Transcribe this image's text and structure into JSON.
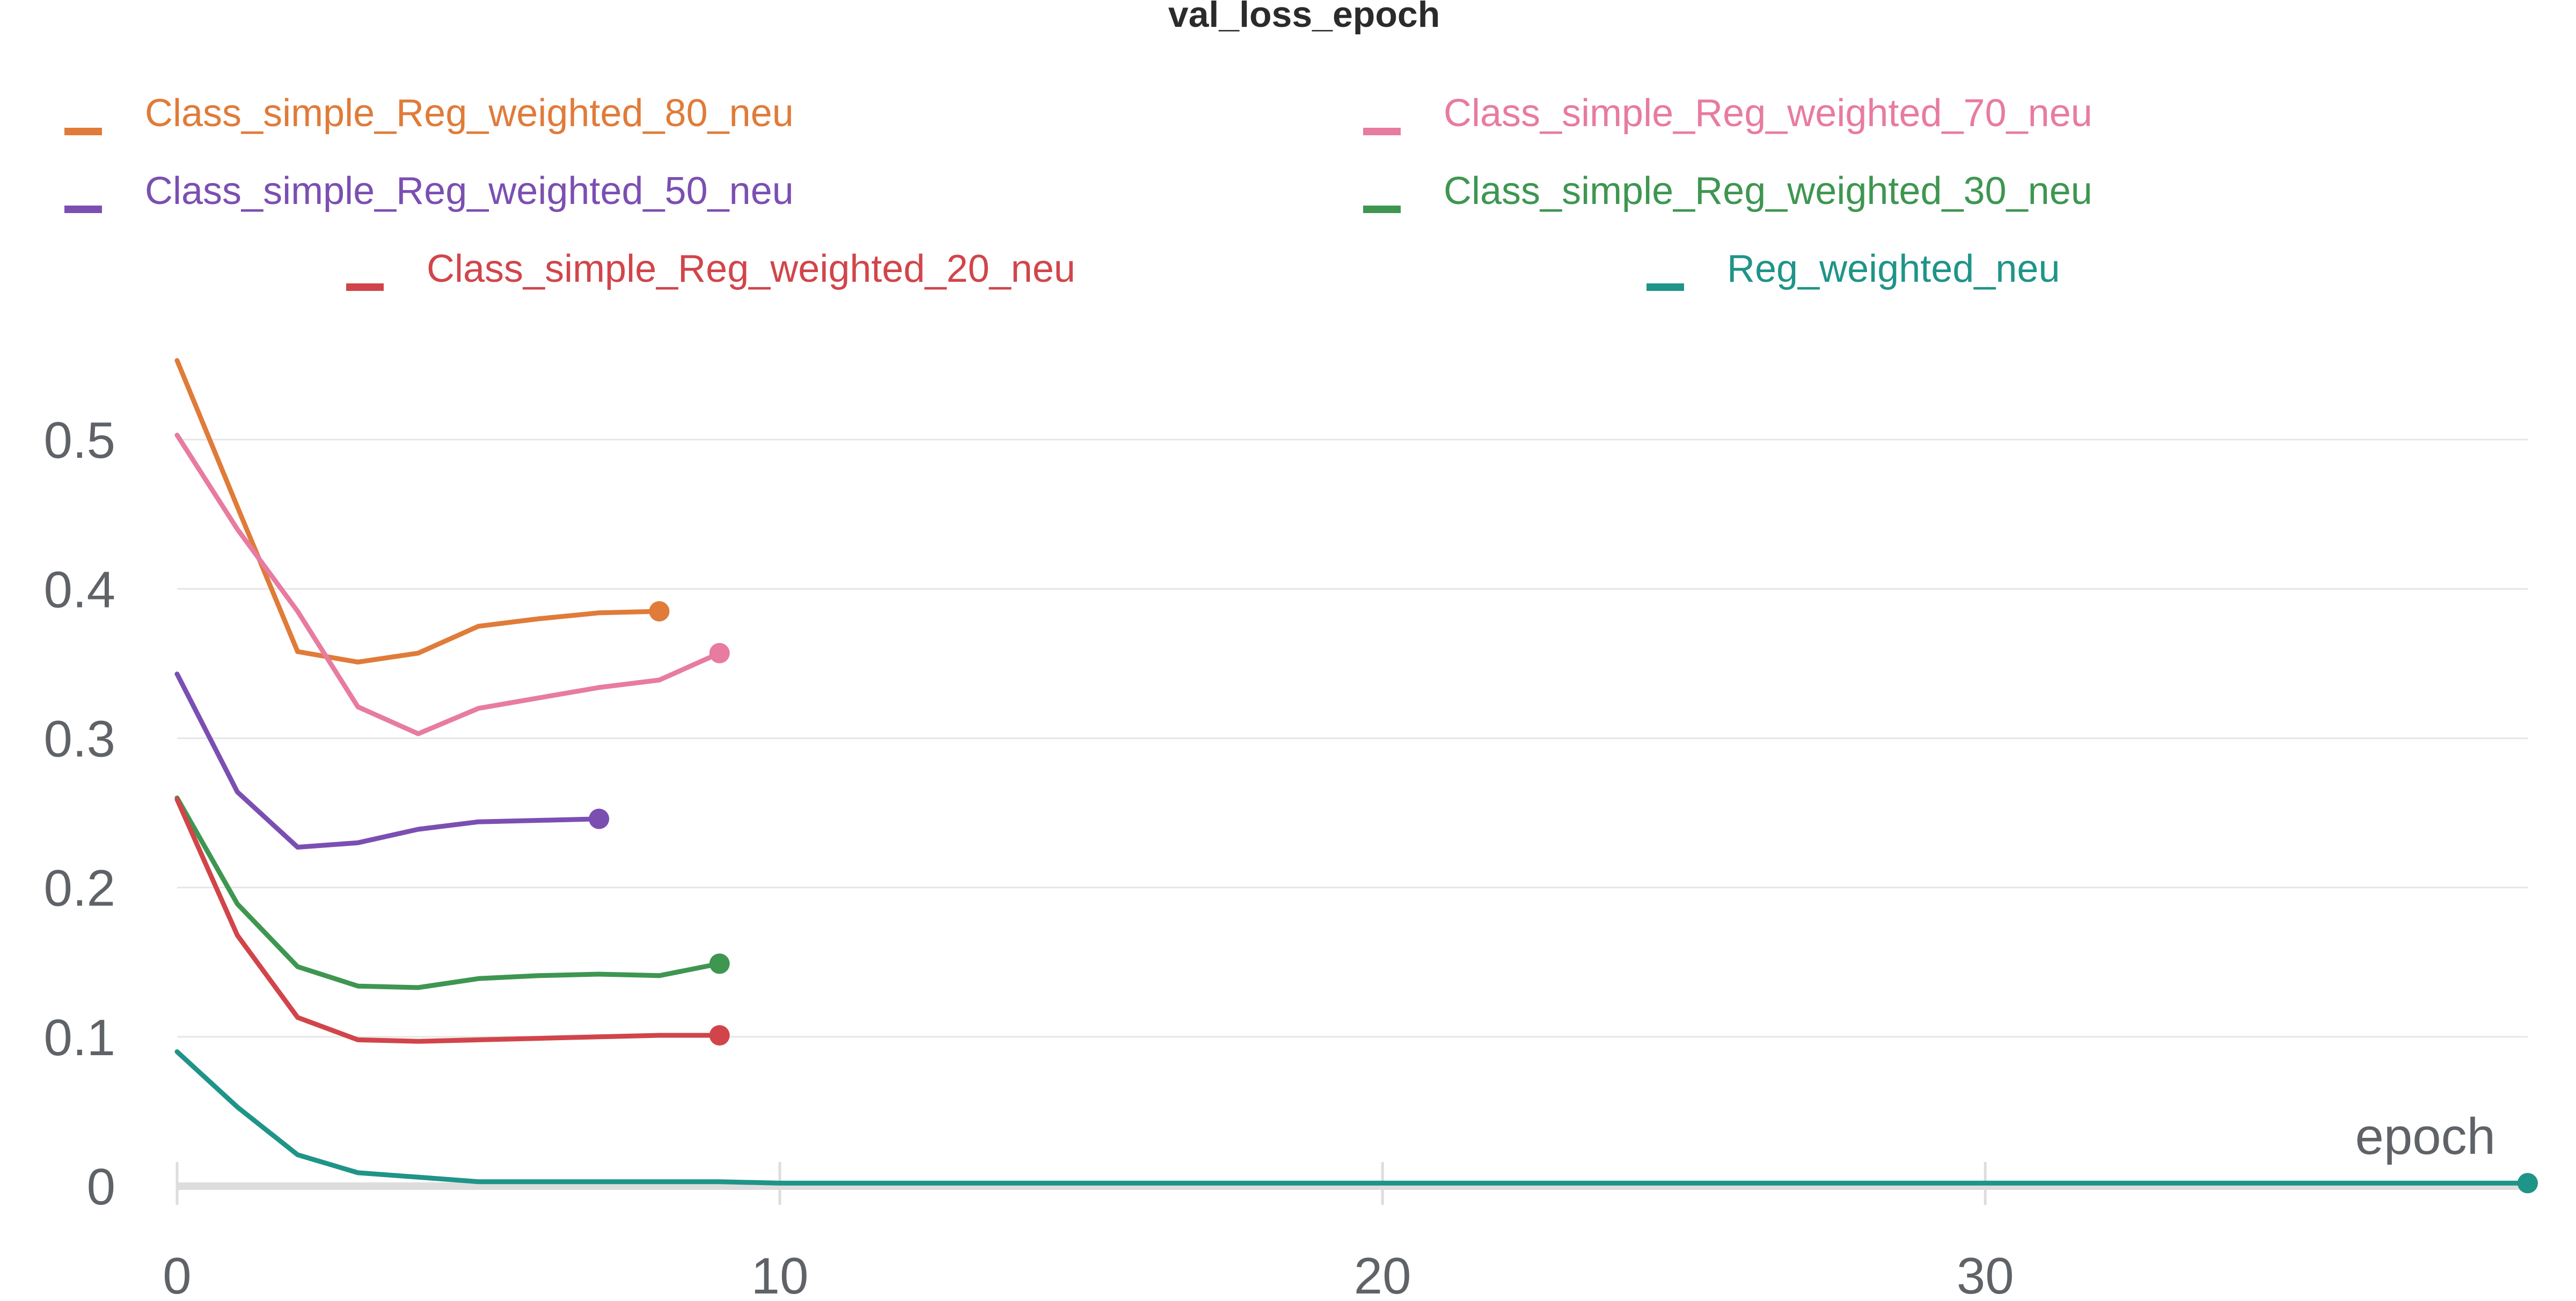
{
  "chart_data": {
    "type": "line",
    "title": "val_loss_epoch",
    "xlabel": "epoch",
    "ylabel": "",
    "xlim": [
      0,
      39
    ],
    "ylim": [
      0,
      0.55
    ],
    "x_ticks": [
      0,
      10,
      20,
      30
    ],
    "y_ticks": [
      0,
      0.1,
      0.2,
      0.3,
      0.4,
      0.5
    ],
    "x_tick_labels": [
      "0",
      "10",
      "20",
      "30"
    ],
    "y_tick_labels": [
      "0",
      "0.1",
      "0.2",
      "0.3",
      "0.4",
      "0.5"
    ],
    "grid": true,
    "legend_position": "top",
    "series": [
      {
        "name": "Class_simple_Reg_weighted_80_neu",
        "color": "#e07b39",
        "x": [
          0,
          1,
          2,
          3,
          4,
          5,
          6,
          7,
          8
        ],
        "y": [
          0.553,
          0.455,
          0.358,
          0.351,
          0.357,
          0.375,
          0.38,
          0.384,
          0.385
        ]
      },
      {
        "name": "Class_simple_Reg_weighted_70_neu",
        "color": "#e87ba0",
        "x": [
          0,
          1,
          2,
          3,
          4,
          5,
          6,
          7,
          8,
          9
        ],
        "y": [
          0.503,
          0.44,
          0.385,
          0.321,
          0.303,
          0.32,
          0.327,
          0.334,
          0.339,
          0.357
        ]
      },
      {
        "name": "Class_simple_Reg_weighted_50_neu",
        "color": "#7b4fb2",
        "x": [
          0,
          1,
          2,
          3,
          4,
          5,
          6,
          7
        ],
        "y": [
          0.343,
          0.264,
          0.227,
          0.23,
          0.239,
          0.244,
          0.245,
          0.246
        ]
      },
      {
        "name": "Class_simple_Reg_weighted_30_neu",
        "color": "#3e9651",
        "x": [
          0,
          1,
          2,
          3,
          4,
          5,
          6,
          7,
          8,
          9
        ],
        "y": [
          0.26,
          0.189,
          0.147,
          0.134,
          0.133,
          0.139,
          0.141,
          0.142,
          0.141,
          0.149
        ]
      },
      {
        "name": "Class_simple_Reg_weighted_20_neu",
        "color": "#d1454a",
        "x": [
          0,
          1,
          2,
          3,
          4,
          5,
          6,
          7,
          8,
          9
        ],
        "y": [
          0.259,
          0.168,
          0.113,
          0.098,
          0.097,
          0.098,
          0.099,
          0.1,
          0.101,
          0.101
        ]
      },
      {
        "name": "Reg_weighted_neu",
        "color": "#1f9488",
        "x": [
          0,
          1,
          2,
          3,
          4,
          5,
          6,
          7,
          8,
          9,
          10,
          15,
          20,
          25,
          30,
          35,
          39
        ],
        "y": [
          0.09,
          0.053,
          0.021,
          0.009,
          0.006,
          0.003,
          0.003,
          0.003,
          0.003,
          0.003,
          0.002,
          0.002,
          0.002,
          0.002,
          0.002,
          0.002,
          0.002
        ]
      }
    ]
  }
}
